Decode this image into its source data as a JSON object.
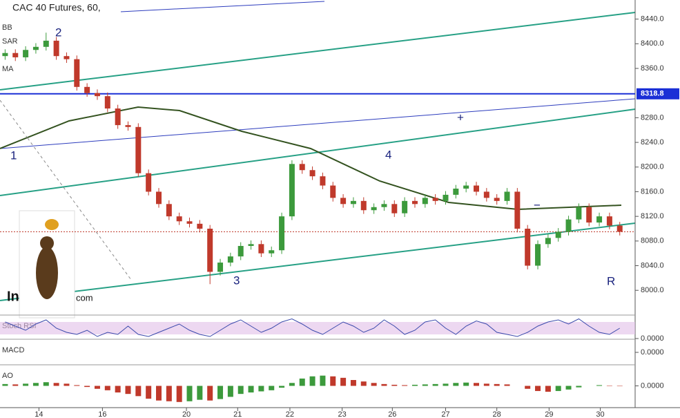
{
  "chart_data": {
    "type": "candlestick",
    "title": "CAC 40 Futures, 60,",
    "indicators": [
      "BB",
      "SAR",
      "MA"
    ],
    "watermark": [
      "In",
      "com"
    ],
    "annotations": [
      "1",
      "2",
      "3",
      "4",
      "R",
      "+",
      "−"
    ],
    "up_color": "#3c9a3c",
    "down_color": "#c0392b",
    "xlim": [
      0,
      62
    ],
    "xticks": [
      {
        "value": 3.8,
        "label": "14"
      },
      {
        "value": 10,
        "label": "16"
      },
      {
        "value": 18.2,
        "label": "20"
      },
      {
        "value": 23.2,
        "label": "21"
      },
      {
        "value": 28.3,
        "label": "22"
      },
      {
        "value": 33.4,
        "label": "23"
      },
      {
        "value": 38.3,
        "label": "26"
      },
      {
        "value": 43.5,
        "label": "27"
      },
      {
        "value": 48.5,
        "label": "28"
      },
      {
        "value": 53.6,
        "label": "29"
      },
      {
        "value": 58.6,
        "label": "30"
      }
    ],
    "ylim": [
      7961,
      8471
    ],
    "yticks": [
      {
        "value": 8000,
        "label": "8000.0"
      },
      {
        "value": 8040,
        "label": "8040.0"
      },
      {
        "value": 8080,
        "label": "8080.0"
      },
      {
        "value": 8120,
        "label": "8120.0"
      },
      {
        "value": 8160,
        "label": "8160.0"
      },
      {
        "value": 8200,
        "label": "8200.0"
      },
      {
        "value": 8240,
        "label": "8240.0"
      },
      {
        "value": 8280,
        "label": "8280.0"
      },
      {
        "value": 8360,
        "label": "8360.0"
      },
      {
        "value": 8400,
        "label": "8400.0"
      },
      {
        "value": 8440,
        "label": "8440.0"
      }
    ],
    "price_line": 8318.8,
    "open": [
      8380,
      8385,
      8378,
      8390,
      8395,
      8405,
      8380,
      8375,
      8330,
      8320,
      8315,
      8295,
      8268,
      8265,
      8190,
      8160,
      8140,
      8120,
      8112,
      8108,
      8100,
      8030,
      8045,
      8055,
      8072,
      8075,
      8060,
      8065,
      8120,
      8205,
      8195,
      8185,
      8170,
      8150,
      8140,
      8145,
      8130,
      8135,
      8140,
      8125,
      8145,
      8140,
      8150,
      8145,
      8155,
      8165,
      8170,
      8160,
      8150,
      8145,
      8160,
      8100,
      8040,
      8075,
      8085,
      8095,
      8115,
      8135,
      8110,
      8120,
      8105
    ],
    "high": [
      8391,
      8391,
      8396,
      8401,
      8418,
      8411,
      8386,
      8381,
      8336,
      8326,
      8321,
      8301,
      8274,
      8271,
      8196,
      8166,
      8146,
      8126,
      8118,
      8114,
      8106,
      8051,
      8061,
      8078,
      8081,
      8081,
      8071,
      8126,
      8211,
      8211,
      8201,
      8191,
      8176,
      8156,
      8151,
      8151,
      8141,
      8146,
      8146,
      8151,
      8151,
      8156,
      8156,
      8161,
      8171,
      8176,
      8176,
      8166,
      8156,
      8166,
      8166,
      8106,
      8081,
      8091,
      8101,
      8121,
      8141,
      8141,
      8126,
      8126,
      8111
    ],
    "low": [
      8374,
      8372,
      8372,
      8384,
      8389,
      8374,
      8369,
      8324,
      8314,
      8309,
      8289,
      8262,
      8259,
      8184,
      8154,
      8134,
      8114,
      8106,
      8102,
      8094,
      8010,
      8024,
      8039,
      8049,
      8066,
      8054,
      8054,
      8059,
      8114,
      8189,
      8179,
      8164,
      8144,
      8134,
      8134,
      8124,
      8124,
      8129,
      8119,
      8119,
      8134,
      8134,
      8139,
      8139,
      8149,
      8159,
      8154,
      8144,
      8139,
      8139,
      8094,
      8034,
      8034,
      8069,
      8079,
      8089,
      8109,
      8104,
      8104,
      8099,
      8089
    ],
    "close": [
      8385,
      8378,
      8390,
      8395,
      8405,
      8380,
      8375,
      8330,
      8320,
      8315,
      8295,
      8268,
      8265,
      8190,
      8160,
      8140,
      8120,
      8112,
      8108,
      8100,
      8030,
      8045,
      8055,
      8072,
      8075,
      8060,
      8065,
      8120,
      8205,
      8195,
      8185,
      8170,
      8150,
      8140,
      8145,
      8130,
      8135,
      8140,
      8125,
      8145,
      8140,
      8150,
      8145,
      8155,
      8165,
      8170,
      8160,
      8150,
      8145,
      8160,
      8100,
      8040,
      8075,
      8085,
      8095,
      8115,
      8135,
      8110,
      8120,
      8105,
      8095
    ],
    "panels": [
      {
        "name": "Stoch RSI",
        "type": "line",
        "color": "#3949ab",
        "ylim": [
          0,
          100
        ],
        "yticks": [
          {
            "value": 0,
            "label": "0.0000"
          }
        ],
        "values": [
          80,
          60,
          40,
          70,
          90,
          50,
          30,
          20,
          40,
          10,
          30,
          20,
          60,
          20,
          10,
          30,
          50,
          70,
          40,
          20,
          10,
          40,
          70,
          90,
          60,
          30,
          50,
          80,
          95,
          70,
          40,
          20,
          50,
          80,
          60,
          30,
          50,
          90,
          60,
          20,
          40,
          80,
          90,
          50,
          20,
          60,
          85,
          70,
          30,
          20,
          10,
          30,
          60,
          80,
          90,
          70,
          95,
          60,
          30,
          20,
          50
        ]
      },
      {
        "name": "MACD",
        "type": "none",
        "ylim": [
          -1,
          1
        ],
        "yticks": [
          {
            "value": 0,
            "label": "0.0000"
          }
        ]
      },
      {
        "name": "AO",
        "type": "histogram",
        "up_color": "#3c9a3c",
        "down_color": "#c0392b",
        "ylim": [
          -50,
          50
        ],
        "yticks": [
          {
            "value": 0,
            "label": "0.0000"
          }
        ],
        "values": [
          5,
          4,
          6,
          8,
          10,
          8,
          6,
          2,
          -3,
          -8,
          -12,
          -18,
          -22,
          -28,
          -35,
          -40,
          -42,
          -44,
          -42,
          -38,
          -40,
          -36,
          -30,
          -22,
          -18,
          -15,
          -12,
          -5,
          8,
          20,
          26,
          28,
          26,
          22,
          16,
          12,
          8,
          5,
          3,
          2,
          3,
          4,
          5,
          6,
          8,
          9,
          8,
          6,
          5,
          4,
          0,
          -8,
          -14,
          -16,
          -14,
          -10,
          -4,
          0,
          2,
          1,
          -1
        ]
      }
    ]
  }
}
